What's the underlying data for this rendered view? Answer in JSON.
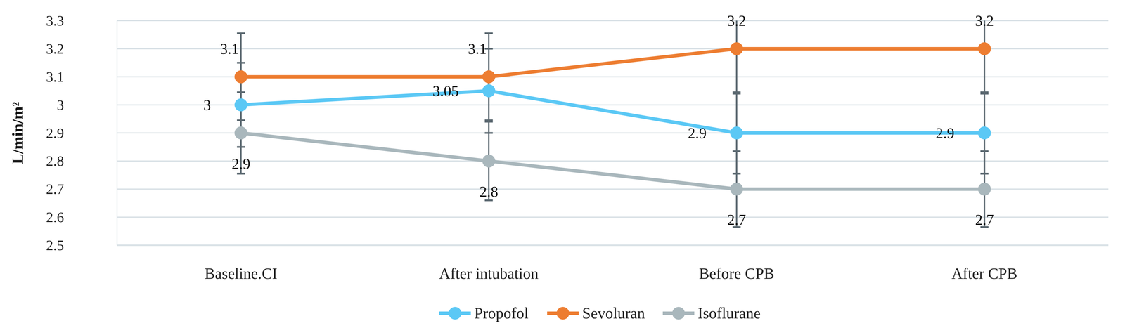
{
  "chart_data": {
    "type": "line",
    "y_label": "L/min/m²",
    "categories": [
      "Baseline.CI",
      "After intubation",
      "Before CPB",
      "After CPB"
    ],
    "series": [
      {
        "name": "Propofol",
        "color": "#5bc8f5",
        "marker": "circle",
        "values": [
          3,
          3.05,
          2.9,
          2.9
        ],
        "errors": [
          0.15,
          0.15,
          0.145,
          0.145
        ]
      },
      {
        "name": "Sevoluran",
        "color": "#ed7d31",
        "marker": "circle",
        "values": [
          3.1,
          3.1,
          3.2,
          3.2
        ],
        "errors": [
          0.155,
          0.155,
          0.16,
          0.16
        ]
      },
      {
        "name": "Isoflurane",
        "color": "#a9b7bc",
        "marker": "circle",
        "values": [
          2.9,
          2.8,
          2.7,
          2.7
        ],
        "errors": [
          0.145,
          0.14,
          0.135,
          0.135
        ]
      }
    ],
    "ylim": [
      2.5,
      3.3
    ],
    "yticks": [
      2.5,
      2.6,
      2.7,
      2.8,
      2.9,
      3,
      3.1,
      3.2,
      3.3
    ],
    "grid": true,
    "data_labels": true,
    "legend": "bottom"
  }
}
